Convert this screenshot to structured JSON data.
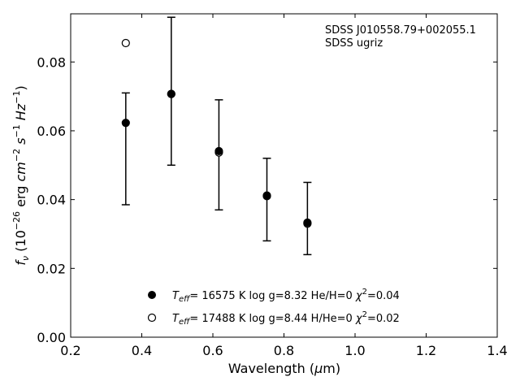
{
  "chart_data": {
    "type": "scatter",
    "annotation": {
      "lines": [
        "SDSS J010558.79+002055.1",
        "SDSS ugriz"
      ]
    },
    "xlabel": {
      "text": "Wavelength (",
      "mu": "μ",
      "unit": "m)"
    },
    "ylabel": {
      "f": "f",
      "nu": "ν",
      "open": " (10",
      "exp1": "−26",
      "erg": " erg ",
      "cm": "cm",
      "exp2": "−2",
      "s": " s",
      "exp3": "−1",
      "hz": " Hz",
      "exp4": "−1",
      "close": ")"
    },
    "xlim": [
      0.2,
      1.4
    ],
    "ylim": [
      0.0,
      0.094
    ],
    "xticks": [
      0.2,
      0.4,
      0.6,
      0.8,
      1.0,
      1.2,
      1.4
    ],
    "xtick_labels": [
      "0.2",
      "0.4",
      "0.6",
      "0.8",
      "1.0",
      "1.2",
      "1.4"
    ],
    "yticks": [
      0.0,
      0.02,
      0.04,
      0.06,
      0.08
    ],
    "ytick_labels": [
      "0.00",
      "0.02",
      "0.04",
      "0.06",
      "0.08"
    ],
    "grid": false,
    "legend_position": "bottom-center",
    "observed": {
      "x": [
        0.355,
        0.483,
        0.617,
        0.752,
        0.866
      ],
      "y": [
        0.0623,
        0.0707,
        0.0541,
        0.0412,
        0.0333
      ],
      "yerr_low": [
        0.0385,
        0.05,
        0.037,
        0.028,
        0.024
      ],
      "yerr_high": [
        0.071,
        0.093,
        0.069,
        0.052,
        0.045
      ]
    },
    "series": [
      {
        "marker": "filled",
        "legend": {
          "T": "T",
          "sub": "eff",
          "text": "= 16575 K  log g=8.32  He/H=0  ",
          "chi": "χ",
          "sup": "2",
          "val": "=0.04"
        },
        "x": [
          0.355,
          0.483,
          0.617,
          0.752,
          0.866
        ],
        "y": [
          0.0623,
          0.0707,
          0.0541,
          0.0412,
          0.0333
        ]
      },
      {
        "marker": "open",
        "legend": {
          "T": "T",
          "sub": "eff",
          "text": "= 17488 K  log g=8.44  H/He=0  ",
          "chi": "χ",
          "sup": "2",
          "val": "=0.02"
        },
        "x": [
          0.355,
          0.483,
          0.617,
          0.752,
          0.866
        ],
        "y": [
          0.0855,
          0.0707,
          0.0537,
          0.041,
          0.033
        ]
      }
    ]
  }
}
